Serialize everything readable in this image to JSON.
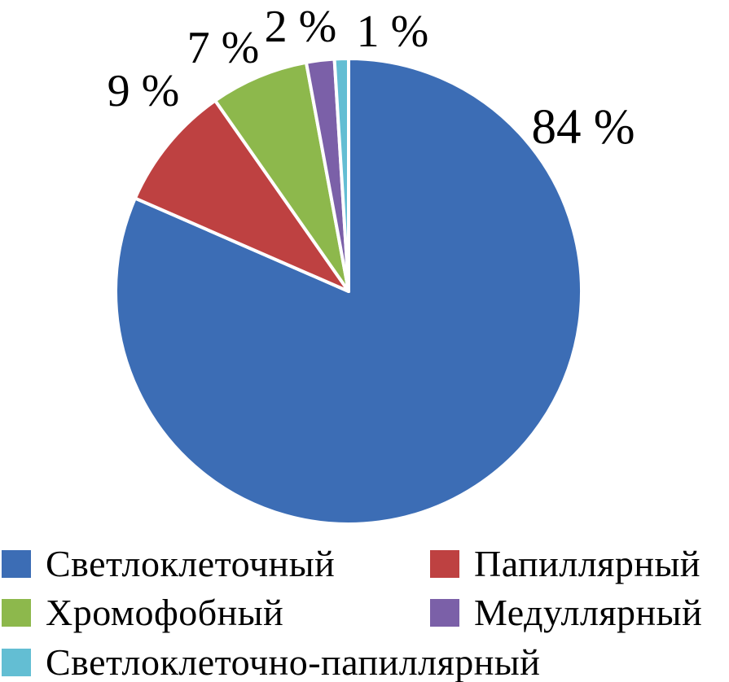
{
  "chart_data": {
    "type": "pie",
    "title": "",
    "legend_position": "bottom",
    "direction": "clockwise",
    "start_angle_deg": 0,
    "background_color": "#FFFFFF",
    "slice_separator_color": "#FFFFFF",
    "text_color": "#000000",
    "categories": [
      "Светлоклеточный",
      "Папиллярный",
      "Хромофобный",
      "Медуллярный",
      "Светлоклеточно-папиллярный"
    ],
    "values": [
      84,
      9,
      7,
      2,
      1
    ],
    "slices": [
      {
        "label": "Светлоклеточный",
        "value": 84,
        "display_label": "84 %",
        "color": "#3C6DB5"
      },
      {
        "label": "Папиллярный",
        "value": 9,
        "display_label": "9 %",
        "color": "#BE4141"
      },
      {
        "label": "Хромофобный",
        "value": 7,
        "display_label": "7 %",
        "color": "#8DB84C"
      },
      {
        "label": "Медуллярный",
        "value": 2,
        "display_label": "2 %",
        "color": "#7B60A8"
      },
      {
        "label": "Светлоклеточно-папиллярный",
        "value": 1,
        "display_label": "1 %",
        "color": "#63BED3"
      }
    ]
  }
}
